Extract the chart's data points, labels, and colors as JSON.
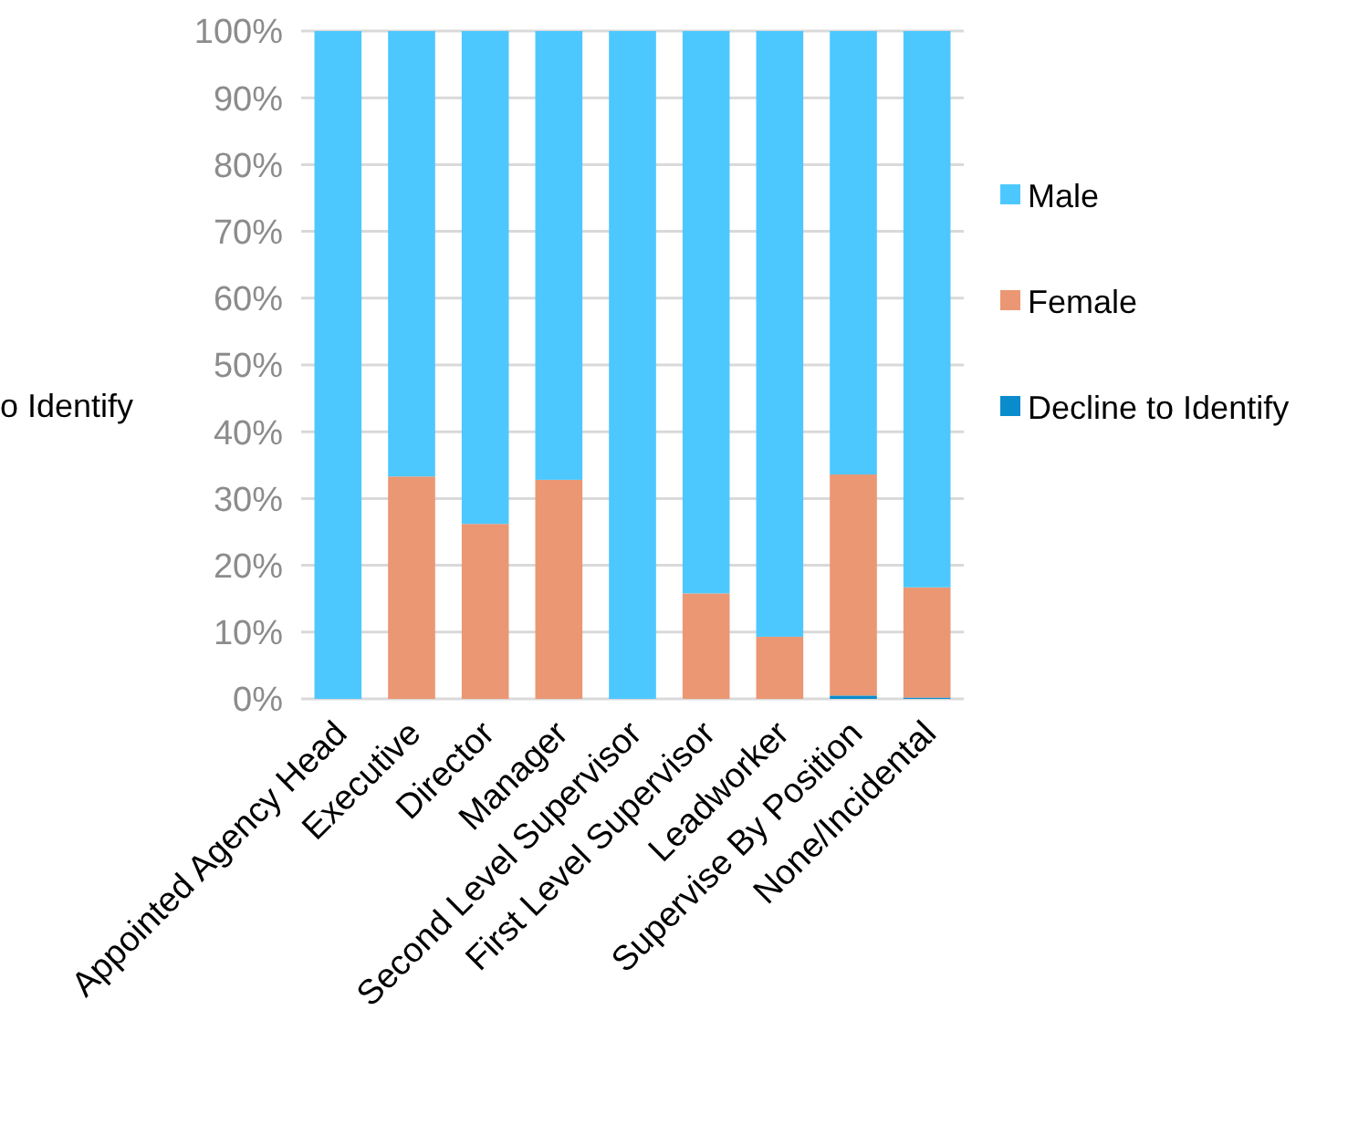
{
  "chart_data": {
    "type": "bar",
    "stacked": true,
    "categories": [
      "Appointed Agency Head",
      "Executive",
      "Director",
      "Manager",
      "Second Level Supervisor",
      "First Level Supervisor",
      "Leadworker",
      "Supervise By Position",
      "None/Incidental"
    ],
    "series": [
      {
        "name": "Decline to Identify",
        "color": "#0a8ccc",
        "values": [
          0,
          0,
          0,
          0,
          0,
          0,
          0,
          0.5,
          0.2
        ]
      },
      {
        "name": "Female",
        "color": "#eb9773",
        "values": [
          0,
          33.3,
          26.2,
          32.8,
          0,
          15.8,
          9.3,
          33.1,
          16.5
        ]
      },
      {
        "name": "Male",
        "color": "#4dc8ff",
        "values": [
          100,
          66.7,
          73.8,
          67.2,
          100,
          84.2,
          90.7,
          66.4,
          83.3
        ]
      }
    ],
    "ylim": [
      0,
      100
    ],
    "yticks": [
      {
        "value": 0,
        "label": "0%"
      },
      {
        "value": 10,
        "label": "10%"
      },
      {
        "value": 20,
        "label": "20%"
      },
      {
        "value": 30,
        "label": "30%"
      },
      {
        "value": 40,
        "label": "40%"
      },
      {
        "value": 50,
        "label": "50%"
      },
      {
        "value": 60,
        "label": "60%"
      },
      {
        "value": 70,
        "label": "70%"
      },
      {
        "value": 80,
        "label": "80%"
      },
      {
        "value": 90,
        "label": "90%"
      },
      {
        "value": 100,
        "label": "100%"
      }
    ],
    "grid": "y",
    "legend": "right",
    "annotations": [
      "o Identify"
    ]
  }
}
